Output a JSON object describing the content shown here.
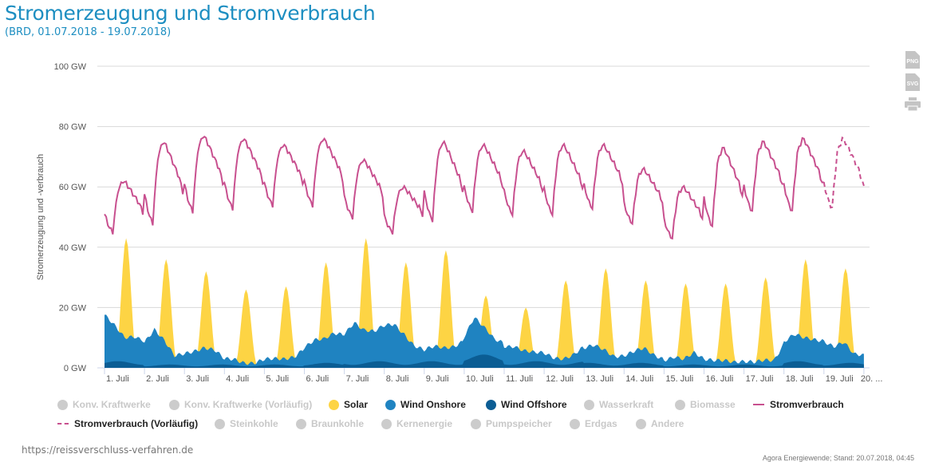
{
  "header": {
    "title": "Stromerzeugung und Stromverbrauch",
    "subtitle": "(BRD, 01.07.2018 - 19.07.2018)"
  },
  "export": {
    "png_label": "PNG",
    "svg_label": "SVG",
    "print_icon": "printer-icon"
  },
  "colors": {
    "solar": "#fdd444",
    "wind_onshore": "#1f83c1",
    "wind_offshore": "#0b5d94",
    "consumption": "#c8508f",
    "grid": "#d8d8d8",
    "disabled": "#cccccc"
  },
  "chart_data": {
    "type": "area",
    "title": "Stromerzeugung und Stromverbrauch",
    "ylabel": "Stromerzeugung und -verbrauch",
    "ylim": [
      0,
      100
    ],
    "y_ticks": [
      "0 GW",
      "20 GW",
      "40 GW",
      "60 GW",
      "80 GW",
      "100 GW"
    ],
    "y_tick_values": [
      0,
      20,
      40,
      60,
      80,
      100
    ],
    "x_ticks": [
      "1. Juli",
      "2. Juli",
      "3. Juli",
      "4. Juli",
      "5. Juli",
      "6. Juli",
      "7. Juli",
      "8. Juli",
      "9. Juli",
      "10. Juli",
      "11. Juli",
      "12. Juli",
      "13. Juli",
      "14. Juli",
      "15. Juli",
      "16. Juli",
      "17. Juli",
      "18. Juli",
      "19. Juli",
      "20. ..."
    ],
    "grid": true,
    "legend_placement": "bottom",
    "days": [
      1,
      2,
      3,
      4,
      5,
      6,
      7,
      8,
      9,
      10,
      11,
      12,
      13,
      14,
      15,
      16,
      17,
      18,
      19
    ],
    "series": [
      {
        "name": "Solar",
        "unit": "GW",
        "daily_peak": [
          43,
          36,
          32,
          26,
          27,
          35,
          43,
          35,
          39,
          24,
          20,
          29,
          33,
          29,
          28,
          28,
          30,
          36,
          33
        ]
      },
      {
        "name": "Wind Onshore",
        "unit": "GW",
        "six_hourly": [
          [
            16,
            12,
            8,
            9
          ],
          [
            8,
            12,
            8,
            3
          ],
          [
            4,
            5,
            6,
            5
          ],
          [
            2,
            2,
            1,
            1
          ],
          [
            2,
            2,
            2,
            3
          ],
          [
            6,
            8,
            8,
            10
          ],
          [
            10,
            14,
            11,
            10
          ],
          [
            12,
            13,
            10,
            6
          ],
          [
            4,
            5,
            5,
            6
          ],
          [
            8,
            13,
            9,
            6
          ],
          [
            6,
            6,
            4,
            3
          ],
          [
            3,
            2,
            2,
            3
          ],
          [
            5,
            6,
            5,
            3
          ],
          [
            3,
            4,
            5,
            3
          ],
          [
            2,
            3,
            2,
            4
          ],
          [
            2,
            2,
            2,
            1
          ],
          [
            1,
            1,
            2,
            2
          ],
          [
            7,
            9,
            8,
            8
          ],
          [
            8,
            6,
            7,
            3
          ]
        ]
      },
      {
        "name": "Wind Offshore",
        "unit": "GW",
        "daily_mean": [
          2,
          1,
          1,
          1,
          1,
          1.5,
          2,
          2,
          2,
          4,
          2,
          2,
          1.5,
          1.5,
          1,
          1,
          1,
          2,
          1.5
        ]
      },
      {
        "name": "Stromverbrauch",
        "unit": "GW",
        "daily_min": [
          45,
          48,
          52,
          53,
          54,
          54,
          50,
          45,
          49,
          52,
          51,
          51,
          53,
          48,
          43,
          47,
          52,
          52
        ],
        "daily_peak": [
          62,
          75,
          77,
          76,
          74,
          76,
          69,
          60,
          75,
          74,
          72,
          74,
          74,
          66,
          60,
          73,
          75,
          76
        ]
      },
      {
        "name": "Stromverbrauch (Vorläufig)",
        "unit": "GW",
        "daily_min": [
          53
        ],
        "daily_peak": [
          76
        ],
        "day": 19
      }
    ]
  },
  "legend": {
    "row1": [
      {
        "label": "Konv. Kraftwerke",
        "enabled": false
      },
      {
        "label": "Konv. Kraftwerke (Vorläufig)",
        "enabled": false
      },
      {
        "label": "Solar",
        "enabled": true
      },
      {
        "label": "Wind Onshore",
        "enabled": true
      },
      {
        "label": "Wind Offshore",
        "enabled": true
      },
      {
        "label": "Wasserkraft",
        "enabled": false
      },
      {
        "label": "Biomasse",
        "enabled": false
      },
      {
        "label": "Stromverbrauch",
        "enabled": true
      }
    ],
    "row2": [
      {
        "label": "Stromverbrauch (Vorläufig)",
        "enabled": true
      },
      {
        "label": "Steinkohle",
        "enabled": false
      },
      {
        "label": "Braunkohle",
        "enabled": false
      },
      {
        "label": "Kernenergie",
        "enabled": false
      },
      {
        "label": "Pumpspeicher",
        "enabled": false
      },
      {
        "label": "Erdgas",
        "enabled": false
      },
      {
        "label": "Andere",
        "enabled": false
      }
    ]
  },
  "footer": {
    "source_url": "https://reissverschluss-verfahren.de",
    "credit": "Agora Energiewende; Stand: 20.07.2018, 04:45"
  }
}
